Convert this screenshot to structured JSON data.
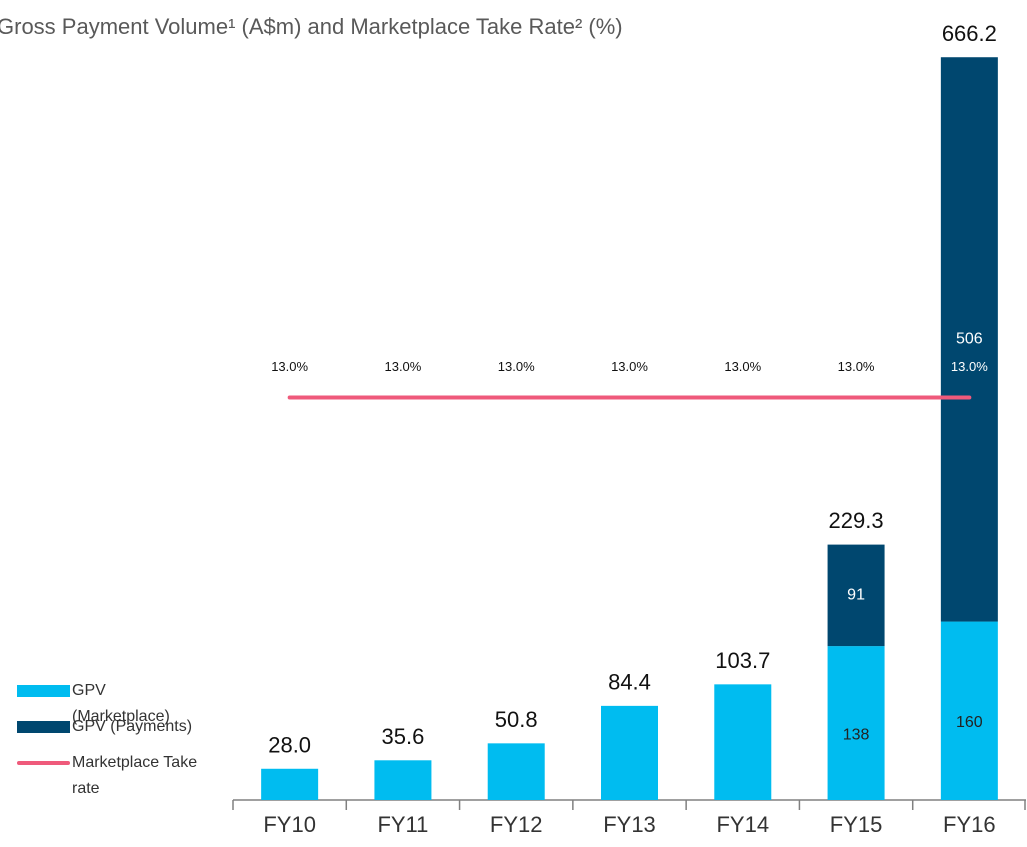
{
  "chart_data": {
    "type": "bar",
    "title": "Gross Payment Volume¹ (A$m) and Marketplace Take Rate² (%)",
    "categories": [
      "FY10",
      "FY11",
      "FY12",
      "FY13",
      "FY14",
      "FY15",
      "FY16"
    ],
    "stacked": true,
    "series": [
      {
        "name": "GPV (Marketplace)",
        "color": "#00bcf0",
        "values": [
          28.0,
          35.6,
          50.8,
          84.4,
          103.7,
          138,
          160
        ]
      },
      {
        "name": "GPV (Payments)",
        "color": "#00476f",
        "values": [
          null,
          null,
          null,
          null,
          null,
          91,
          506
        ]
      },
      {
        "name": "Marketplace Take rate",
        "type": "line",
        "axis": "y2",
        "color": "#ef5a7b",
        "values": [
          13.0,
          13.0,
          13.0,
          13.0,
          13.0,
          13.0,
          13.0
        ],
        "value_labels": [
          "13.0%",
          "13.0%",
          "13.0%",
          "13.0%",
          "13.0%",
          "13.0%",
          "13.0%"
        ]
      }
    ],
    "totals": [
      28.0,
      35.6,
      50.8,
      84.4,
      103.7,
      229.3,
      666.2
    ],
    "total_labels": [
      "28.0",
      "35.6",
      "50.8",
      "84.4",
      "103.7",
      "229.3",
      "666.2"
    ],
    "ylim": [
      0,
      666.2
    ],
    "y2lim": [
      0,
      24
    ],
    "legend": "bottom-left"
  }
}
